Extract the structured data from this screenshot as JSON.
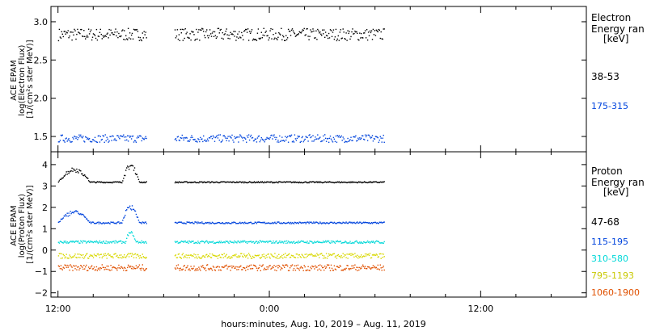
{
  "xlabel": "hours:minutes, Aug. 10, 2019 – Aug. 11, 2019",
  "x_ticks": [
    {
      "label": "12:00",
      "hour": 12
    },
    {
      "label": "0:00",
      "hour": 24
    },
    {
      "label": "12:00",
      "hour": 36
    }
  ],
  "chart_data": [
    {
      "type": "scatter",
      "ylabel": [
        "ACE EPAM",
        "log(Electron Flux)",
        "[1/(cm²s ster MeV)]"
      ],
      "legend_title": [
        "Electron",
        "Energy ran",
        "[keV]"
      ],
      "xlim_hours": [
        11.6,
        42.0
      ],
      "ylim": [
        1.3,
        3.2
      ],
      "y_ticks": [
        {
          "label": "3.0",
          "v": 3.0
        },
        {
          "label": "2.5",
          "v": 2.5
        },
        {
          "label": "2.0",
          "v": 2.0
        },
        {
          "label": "1.5",
          "v": 1.5
        }
      ],
      "gap_hours": [
        17.0,
        18.6
      ],
      "data_end_hour": 30.5,
      "series": [
        {
          "name": "38-53",
          "color": "#000000",
          "level": 2.84,
          "noise": 0.08,
          "bumps": []
        },
        {
          "name": "175-315",
          "color": "#0044dd",
          "level": 1.48,
          "noise": 0.05,
          "bumps": []
        }
      ]
    },
    {
      "type": "scatter",
      "ylabel": [
        "ACE EPAM",
        "log(Proton Flux)",
        "[1/(cm²s ster MeV)]"
      ],
      "legend_title": [
        "Proton",
        "Energy ran",
        "[keV]"
      ],
      "xlim_hours": [
        11.6,
        42.0
      ],
      "ylim": [
        -2.2,
        4.6
      ],
      "y_ticks": [
        {
          "label": "4",
          "v": 4
        },
        {
          "label": "3",
          "v": 3
        },
        {
          "label": "2",
          "v": 2
        },
        {
          "label": "1",
          "v": 1
        },
        {
          "label": "0",
          "v": 0
        },
        {
          "label": "−1",
          "v": -1
        },
        {
          "label": "−2",
          "v": -2
        }
      ],
      "gap_hours": [
        17.0,
        18.6
      ],
      "data_end_hour": 30.5,
      "series": [
        {
          "name": "47-68",
          "color": "#000000",
          "level": 3.2,
          "noise": 0.03,
          "bumps": [
            [
              12.0,
              13.8,
              0.7
            ],
            [
              15.6,
              16.6,
              0.9
            ]
          ]
        },
        {
          "name": "115-195",
          "color": "#0044dd",
          "level": 1.3,
          "noise": 0.04,
          "bumps": [
            [
              12.0,
              13.8,
              0.6
            ],
            [
              15.6,
              16.6,
              0.9
            ]
          ]
        },
        {
          "name": "310-580",
          "color": "#00d8d8",
          "level": 0.4,
          "noise": 0.06,
          "bumps": [
            [
              15.8,
              16.4,
              0.5
            ]
          ]
        },
        {
          "name": "795-1193",
          "color": "#d8d800",
          "level": -0.25,
          "noise": 0.12,
          "bumps": []
        },
        {
          "name": "1060-1900",
          "color": "#e05000",
          "level": -0.8,
          "noise": 0.14,
          "bumps": []
        }
      ]
    }
  ]
}
